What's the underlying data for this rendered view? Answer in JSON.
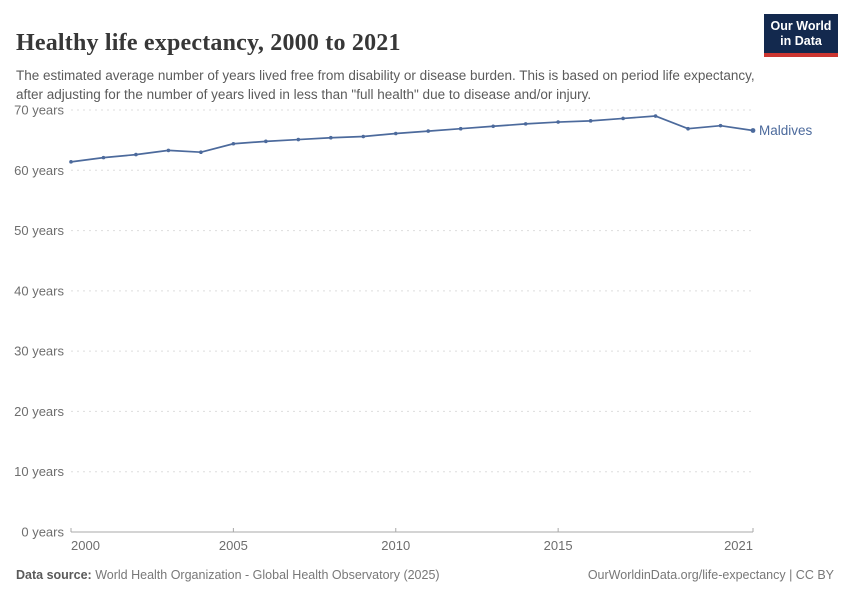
{
  "header": {
    "title": "Healthy life expectancy, 2000 to 2021",
    "subtitle": "The estimated average number of years lived free from disability or disease burden. This is based on period life expectancy, after adjusting for the number of years lived in less than \"full health\" due to disease and/or injury.",
    "logo": {
      "line1": "Our World",
      "line2": "in Data",
      "bg_color": "#13294e",
      "accent_color": "#cc3631"
    }
  },
  "chart_data": {
    "type": "line",
    "title": "Healthy life expectancy, 2000 to 2021",
    "xlabel": "",
    "ylabel": "years",
    "x": [
      2000,
      2001,
      2002,
      2003,
      2004,
      2005,
      2006,
      2007,
      2008,
      2009,
      2010,
      2011,
      2012,
      2013,
      2014,
      2015,
      2016,
      2017,
      2018,
      2019,
      2020,
      2021
    ],
    "series": [
      {
        "name": "Maldives",
        "color": "#4c6a9c",
        "values": [
          61.4,
          62.1,
          62.6,
          63.3,
          63.0,
          64.4,
          64.8,
          65.1,
          65.4,
          65.6,
          66.1,
          66.5,
          66.9,
          67.3,
          67.7,
          68.0,
          68.2,
          68.6,
          69.0,
          66.9,
          67.4,
          66.6
        ]
      }
    ],
    "xlim": [
      2000,
      2021
    ],
    "ylim": [
      0,
      70
    ],
    "x_ticks": [
      {
        "value": 2000,
        "label": "2000"
      },
      {
        "value": 2005,
        "label": "2005"
      },
      {
        "value": 2010,
        "label": "2010"
      },
      {
        "value": 2015,
        "label": "2015"
      },
      {
        "value": 2021,
        "label": "2021"
      }
    ],
    "y_ticks": [
      {
        "value": 0,
        "label": "0 years"
      },
      {
        "value": 10,
        "label": "10 years"
      },
      {
        "value": 20,
        "label": "20 years"
      },
      {
        "value": 30,
        "label": "30 years"
      },
      {
        "value": 40,
        "label": "40 years"
      },
      {
        "value": 50,
        "label": "50 years"
      },
      {
        "value": 60,
        "label": "60 years"
      },
      {
        "value": 70,
        "label": "70 years"
      }
    ],
    "grid": "horizontal-dashed",
    "legend_position": "end-of-line-label",
    "colors": {
      "grid": "#dddddd",
      "axis": "#a8a8a8",
      "tick_label": "#6e6e6e"
    }
  },
  "footer": {
    "datasource_label": "Data source:",
    "datasource_text": " World Health Organization - Global Health Observatory (2025)",
    "attribution": "OurWorldinData.org/life-expectancy | CC BY"
  }
}
